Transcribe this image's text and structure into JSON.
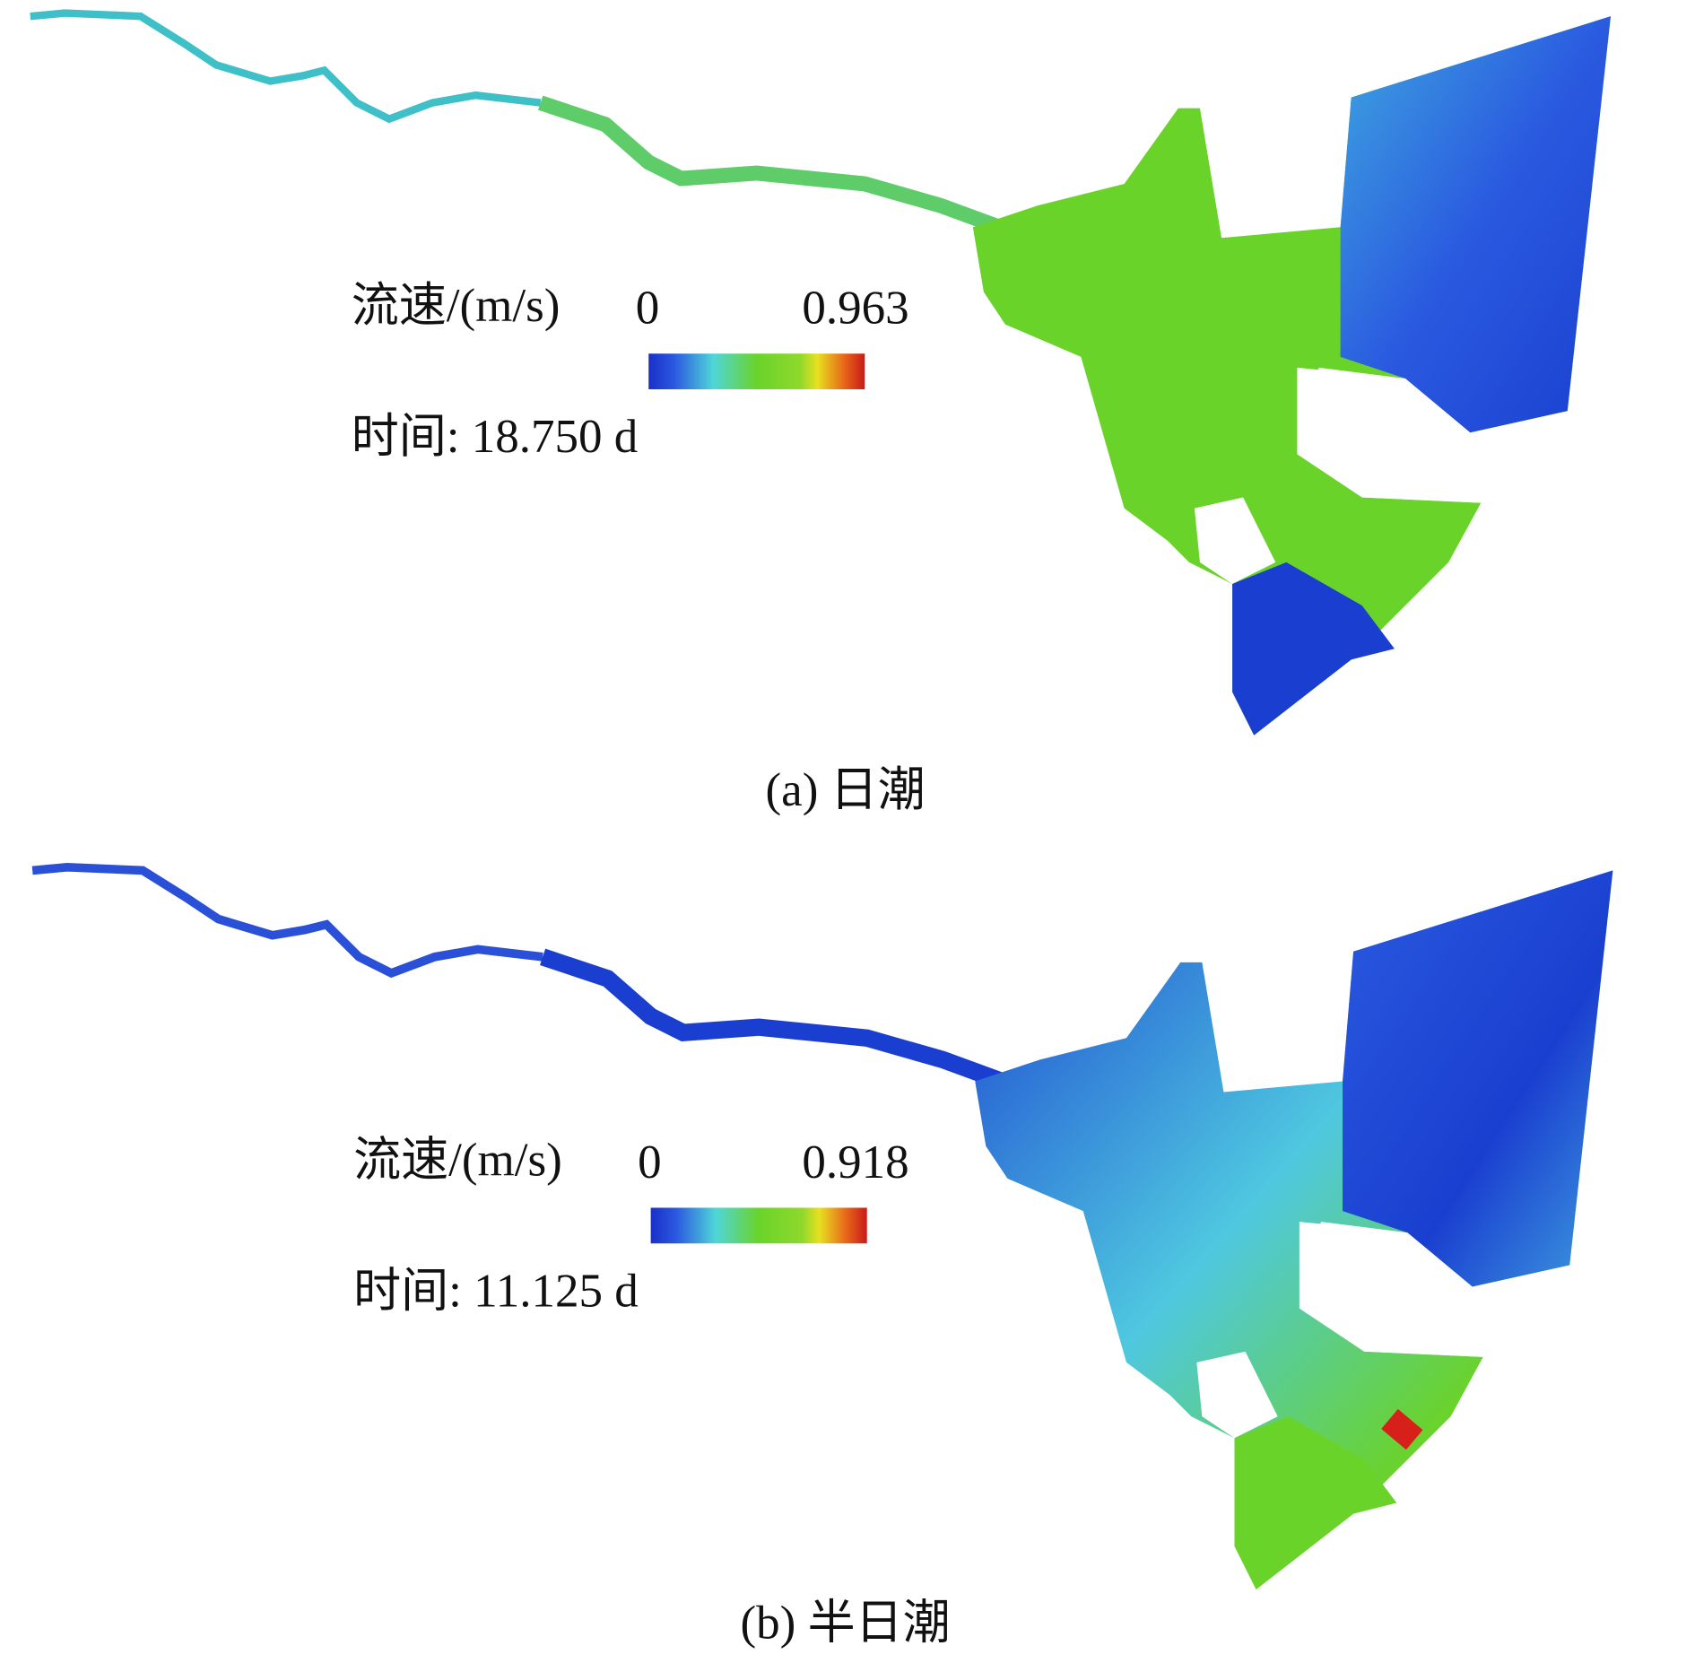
{
  "panels": [
    {
      "legend_label": "流速/(m/s)",
      "scale_min": "0",
      "scale_max": "0.963",
      "time": "时间: 18.750 d",
      "caption": "(a) 日潮"
    },
    {
      "legend_label": "流速/(m/s)",
      "scale_min": "0",
      "scale_max": "0.918",
      "time": "时间: 11.125 d",
      "caption": "(b) 半日潮"
    }
  ]
}
